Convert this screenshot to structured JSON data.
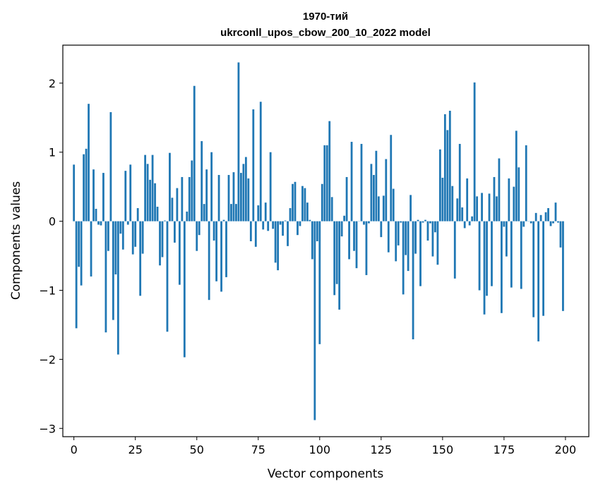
{
  "chart_data": {
    "type": "bar",
    "title": "1970-тий",
    "subtitle": "ukrconll_upos_cbow_200_10_2022 model",
    "xlabel": "Vector components",
    "ylabel": "Components values",
    "xlim": [
      -4.5,
      209.5
    ],
    "ylim": [
      -3.12,
      2.55
    ],
    "xticks": [
      0,
      25,
      50,
      75,
      100,
      125,
      150,
      175,
      200
    ],
    "yticks": [
      -3,
      -2,
      -1,
      0,
      1,
      2
    ],
    "ytick_labels": [
      "−3",
      "−2",
      "−1",
      "0",
      "1",
      "2"
    ],
    "bar_color": "#1f77b4",
    "grid": false,
    "values": [
      0.82,
      -1.55,
      -0.66,
      -0.93,
      0.97,
      1.05,
      1.7,
      -0.8,
      0.75,
      0.18,
      -0.05,
      -0.06,
      0.7,
      -1.61,
      -0.43,
      1.58,
      -1.43,
      -0.77,
      -1.93,
      -0.18,
      -0.41,
      0.73,
      -0.05,
      0.82,
      -0.48,
      -0.37,
      0.19,
      -1.08,
      -0.47,
      0.96,
      0.83,
      0.6,
      0.96,
      0.55,
      0.21,
      -0.64,
      -0.52,
      0.01,
      -1.6,
      0.99,
      0.34,
      -0.31,
      0.48,
      -0.92,
      0.64,
      -1.97,
      0.14,
      0.64,
      0.88,
      1.96,
      -0.43,
      -0.2,
      1.16,
      0.25,
      0.75,
      -1.14,
      1.0,
      -0.28,
      -0.87,
      0.67,
      -1.02,
      0.02,
      -0.81,
      0.67,
      0.25,
      0.71,
      0.25,
      2.3,
      0.7,
      0.83,
      0.93,
      0.62,
      -0.29,
      1.62,
      -0.37,
      0.23,
      1.73,
      -0.12,
      0.27,
      -0.14,
      1.0,
      -0.11,
      -0.6,
      -0.71,
      -0.05,
      -0.21,
      0.01,
      -0.36,
      0.19,
      0.54,
      0.57,
      -0.2,
      -0.07,
      0.51,
      0.48,
      0.27,
      0.02,
      -0.55,
      -2.88,
      -0.29,
      -1.78,
      0.54,
      1.1,
      1.1,
      1.45,
      0.35,
      -1.07,
      -0.91,
      -1.28,
      -0.22,
      0.08,
      0.64,
      -0.55,
      1.15,
      -0.43,
      -0.68,
      0.0,
      1.12,
      -0.05,
      -0.78,
      -0.03,
      0.83,
      0.67,
      1.02,
      0.36,
      -0.23,
      0.37,
      0.9,
      -0.45,
      1.25,
      0.47,
      -0.58,
      -0.35,
      -0.02,
      -1.06,
      -0.49,
      -0.72,
      0.38,
      -1.71,
      -0.47,
      0.02,
      -0.94,
      -0.02,
      0.02,
      -0.28,
      -0.03,
      -0.51,
      -0.16,
      -0.63,
      1.04,
      0.63,
      1.55,
      1.32,
      1.6,
      0.51,
      -0.83,
      0.33,
      1.12,
      0.2,
      -0.1,
      0.62,
      -0.06,
      0.07,
      2.01,
      0.36,
      -1.0,
      0.41,
      -1.35,
      -1.08,
      0.4,
      -0.94,
      0.64,
      0.36,
      0.91,
      -1.33,
      -0.08,
      -0.51,
      0.62,
      -0.96,
      0.5,
      1.31,
      0.78,
      -0.98,
      -0.08,
      1.1,
      0.0,
      -0.03,
      -1.39,
      0.12,
      -1.74,
      0.09,
      -1.37,
      0.13,
      0.19,
      -0.07,
      -0.03,
      0.27,
      -0.02,
      -0.38,
      -1.3
    ]
  }
}
